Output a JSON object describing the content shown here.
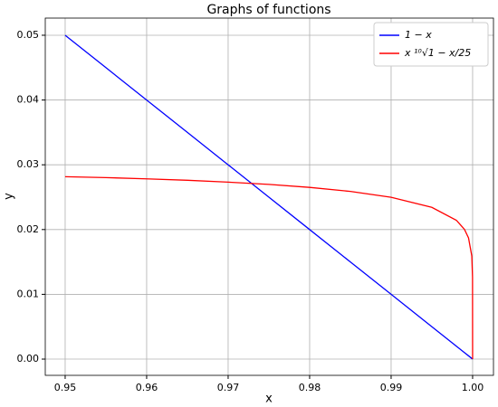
{
  "chart_data": {
    "type": "line",
    "title": "Graphs of functions",
    "x_label": "x",
    "y_label": "y",
    "x": [
      0.95,
      0.955,
      0.96,
      0.965,
      0.97,
      0.975,
      0.98,
      0.985,
      0.99,
      0.995,
      0.998,
      0.999,
      0.9995,
      0.9999,
      0.99999,
      1.0
    ],
    "series": [
      {
        "name": "1 − x",
        "color": "#0000ff",
        "values": [
          0.05,
          0.045,
          0.04,
          0.035,
          0.03,
          0.025,
          0.02,
          0.015,
          0.01,
          0.005,
          0.002,
          0.001,
          0.0005,
          0.0001,
          1e-05,
          0.0
        ]
      },
      {
        "name": "x ¹⁰√1 − x/25",
        "color": "#ff0000",
        "values": [
          0.02816,
          0.02802,
          0.02783,
          0.02761,
          0.02732,
          0.02697,
          0.02651,
          0.02589,
          0.02498,
          0.02343,
          0.02144,
          0.02003,
          0.0187,
          0.01592,
          0.01265,
          0.0
        ]
      }
    ],
    "xlim": [
      0.94756,
      1.00256
    ],
    "ylim": [
      -0.00251,
      0.05265
    ],
    "xticks": [
      0.95,
      0.96,
      0.97,
      0.98,
      0.99,
      {
        "value": 1,
        "label": "1.00"
      }
    ],
    "yticks": [
      {
        "value": 0,
        "label": "0.00"
      },
      0.01,
      0.02,
      0.03,
      0.04,
      0.05
    ],
    "grid": true,
    "legend": "upper right"
  }
}
